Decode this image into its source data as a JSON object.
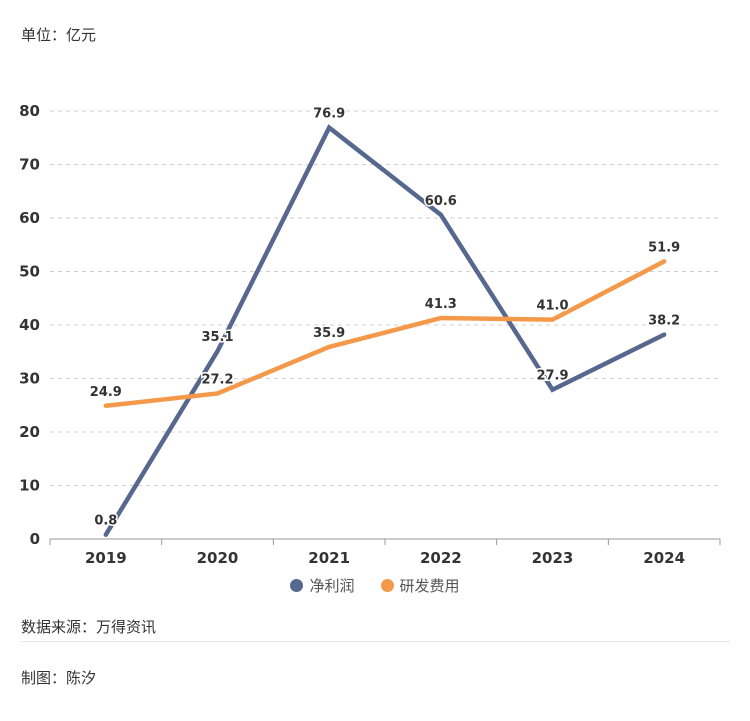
{
  "header": {
    "unit_label": "单位：亿元"
  },
  "chart_data": {
    "type": "line",
    "title": "",
    "xlabel": "",
    "ylabel": "亿元",
    "categories": [
      "2019",
      "2020",
      "2021",
      "2022",
      "2023",
      "2024"
    ],
    "ylim": [
      0,
      80
    ],
    "yticks": [
      0,
      10,
      20,
      30,
      40,
      50,
      60,
      70,
      80
    ],
    "grid": true,
    "legend_position": "bottom",
    "series": [
      {
        "name": "净利润",
        "color": "#56688e",
        "values": [
          0.8,
          35.1,
          76.9,
          60.6,
          27.9,
          38.2
        ]
      },
      {
        "name": "研发费用",
        "color": "#f4994a",
        "values": [
          24.9,
          27.2,
          35.9,
          41.3,
          41.0,
          51.9
        ]
      }
    ]
  },
  "legend": [
    {
      "label": "净利润",
      "color": "#56688e"
    },
    {
      "label": "研发费用",
      "color": "#f4994a"
    }
  ],
  "footer": {
    "source": "数据来源：万得资讯",
    "author": "制图：陈汐"
  }
}
